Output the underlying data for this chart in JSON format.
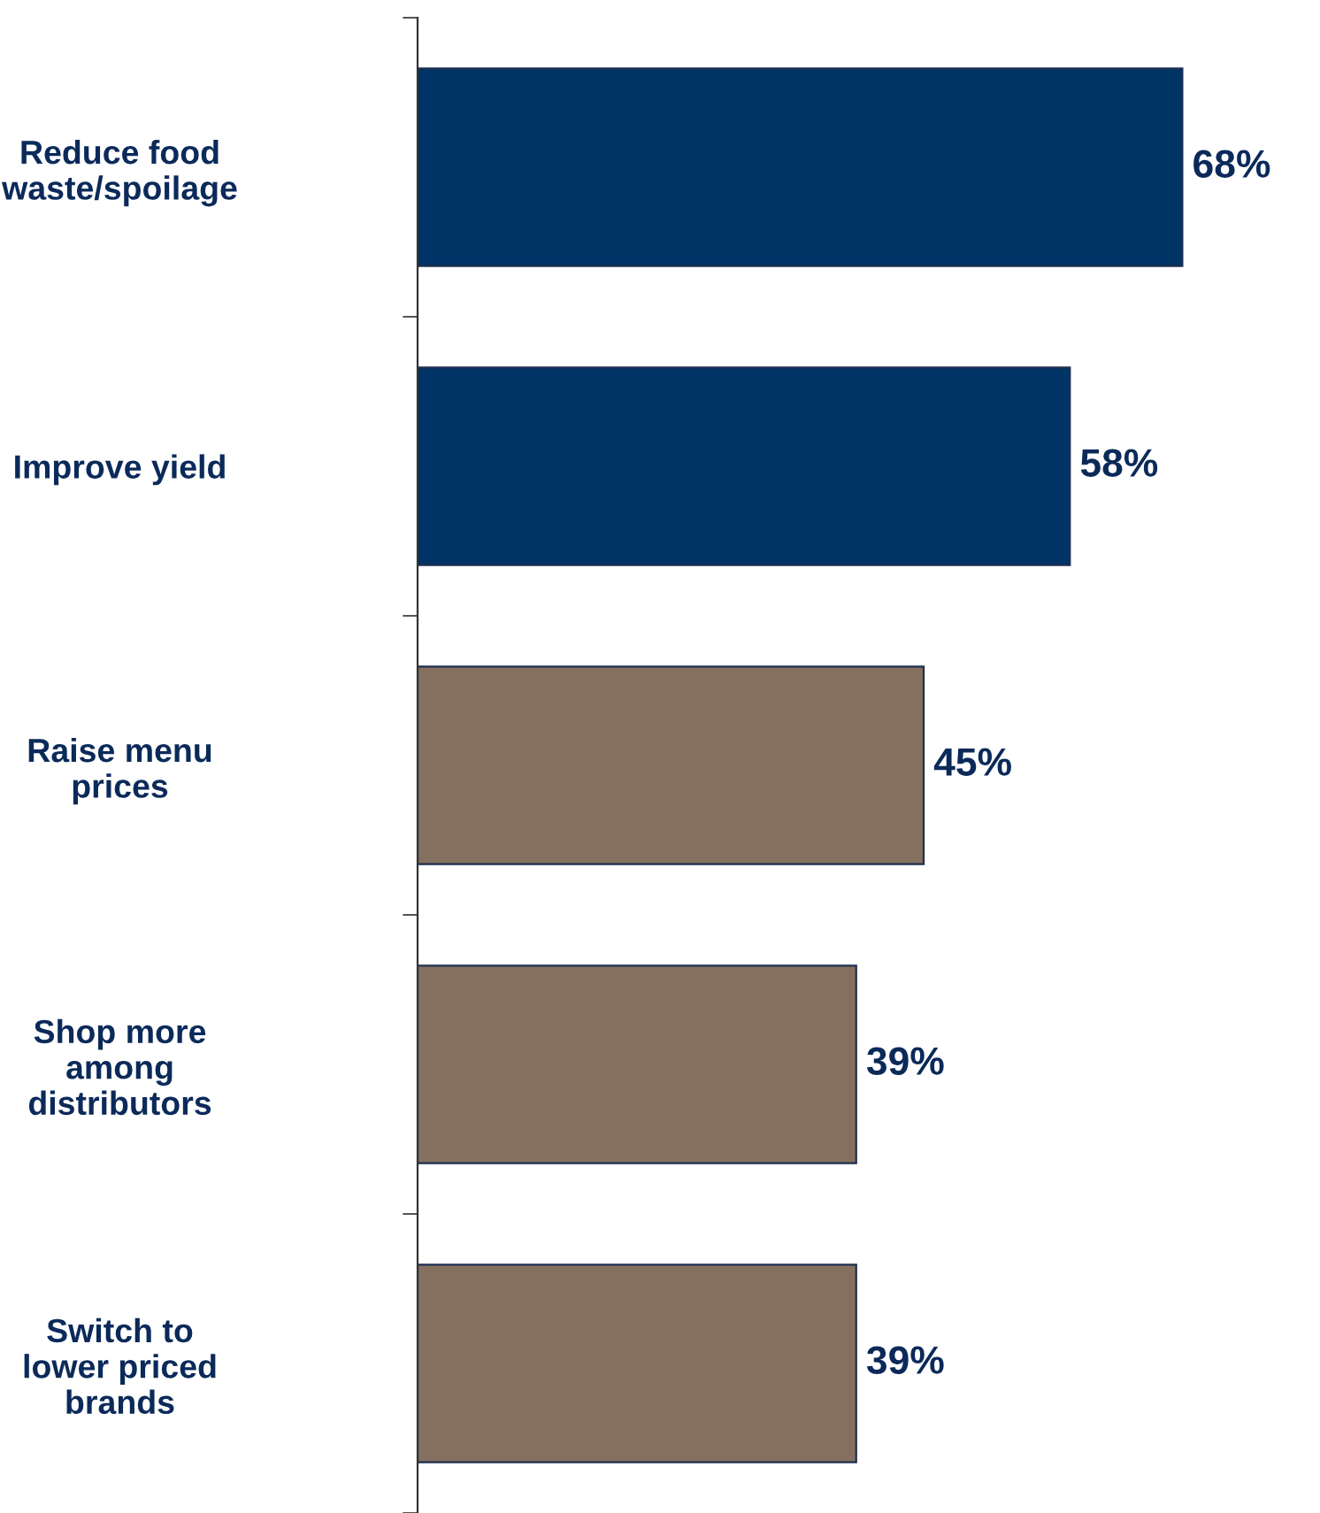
{
  "chart_data": {
    "type": "bar",
    "orientation": "horizontal",
    "categories": [
      "Reduce food\nwaste/spoilage",
      "Improve yield",
      "Raise menu\nprices",
      "Shop more\namong\ndistributors",
      "Switch to\nlower priced\nbrands"
    ],
    "values": [
      68,
      58,
      45,
      39,
      39
    ],
    "colors": [
      "#003366",
      "#003366",
      "#857060",
      "#857060",
      "#857060"
    ],
    "value_labels": [
      "68%",
      "58%",
      "45%",
      "39%",
      "39%"
    ],
    "tick_labels": "y",
    "grid": false,
    "legend": false
  }
}
